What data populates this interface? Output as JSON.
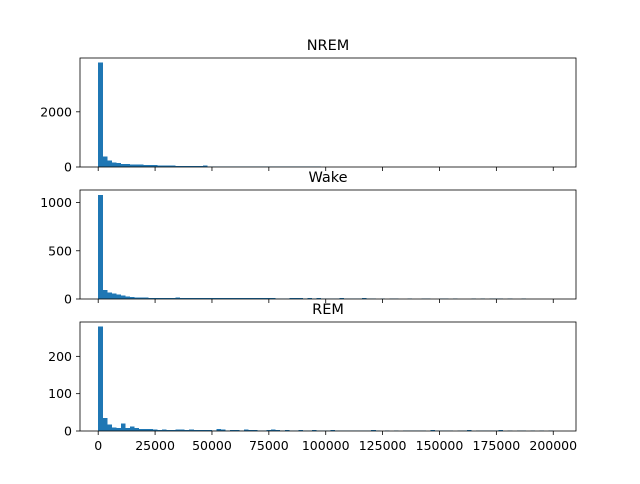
{
  "chart_data": {
    "type": "bar",
    "color": "#1f77b4",
    "bin_width": 2000,
    "xlim": [
      -8000,
      210000
    ],
    "xticks": [
      0,
      25000,
      50000,
      75000,
      100000,
      125000,
      150000,
      175000,
      200000
    ],
    "xtick_labels": [
      "0",
      "25000",
      "50000",
      "75000",
      "100000",
      "125000",
      "150000",
      "175000",
      "200000"
    ],
    "shared_x": true,
    "panels": [
      {
        "title": "NREM",
        "ylim": [
          0,
          3950
        ],
        "yticks": [
          0,
          2000
        ],
        "ytick_labels": [
          "0",
          "2000"
        ],
        "bins": [
          [
            0,
            3780
          ],
          [
            2000,
            380
          ],
          [
            4000,
            230
          ],
          [
            6000,
            170
          ],
          [
            8000,
            140
          ],
          [
            10000,
            110
          ],
          [
            12000,
            100
          ],
          [
            14000,
            95
          ],
          [
            16000,
            90
          ],
          [
            18000,
            85
          ],
          [
            20000,
            70
          ],
          [
            22000,
            70
          ],
          [
            24000,
            65
          ],
          [
            26000,
            60
          ],
          [
            28000,
            60
          ],
          [
            30000,
            55
          ],
          [
            32000,
            50
          ],
          [
            34000,
            45
          ],
          [
            36000,
            40
          ],
          [
            38000,
            35
          ],
          [
            40000,
            30
          ],
          [
            42000,
            30
          ],
          [
            44000,
            28
          ],
          [
            46000,
            60
          ],
          [
            48000,
            25
          ],
          [
            50000,
            25
          ],
          [
            52000,
            25
          ],
          [
            54000,
            20
          ],
          [
            56000,
            20
          ],
          [
            58000,
            18
          ],
          [
            60000,
            18
          ],
          [
            62000,
            18
          ],
          [
            64000,
            15
          ],
          [
            66000,
            15
          ],
          [
            68000,
            15
          ],
          [
            70000,
            14
          ],
          [
            72000,
            12
          ],
          [
            74000,
            12
          ],
          [
            76000,
            12
          ],
          [
            78000,
            12
          ],
          [
            80000,
            10
          ],
          [
            82000,
            10
          ],
          [
            84000,
            10
          ],
          [
            86000,
            10
          ],
          [
            88000,
            10
          ],
          [
            90000,
            10
          ],
          [
            92000,
            10
          ],
          [
            94000,
            10
          ],
          [
            96000,
            10
          ],
          [
            98000,
            8
          ],
          [
            100000,
            8
          ],
          [
            102000,
            8
          ],
          [
            104000,
            8
          ],
          [
            106000,
            8
          ],
          [
            108000,
            8
          ],
          [
            110000,
            8
          ],
          [
            112000,
            8
          ],
          [
            114000,
            8
          ],
          [
            116000,
            8
          ],
          [
            118000,
            8
          ],
          [
            120000,
            8
          ],
          [
            122000,
            6
          ],
          [
            124000,
            6
          ],
          [
            126000,
            6
          ],
          [
            128000,
            6
          ],
          [
            130000,
            6
          ],
          [
            132000,
            6
          ],
          [
            134000,
            6
          ],
          [
            136000,
            6
          ],
          [
            138000,
            6
          ],
          [
            140000,
            6
          ],
          [
            142000,
            6
          ],
          [
            144000,
            6
          ],
          [
            146000,
            6
          ],
          [
            148000,
            6
          ],
          [
            150000,
            6
          ],
          [
            152000,
            6
          ],
          [
            154000,
            6
          ],
          [
            156000,
            6
          ],
          [
            158000,
            6
          ],
          [
            160000,
            6
          ],
          [
            162000,
            6
          ],
          [
            164000,
            6
          ],
          [
            166000,
            6
          ],
          [
            168000,
            6
          ],
          [
            170000,
            6
          ],
          [
            172000,
            6
          ],
          [
            174000,
            6
          ],
          [
            176000,
            6
          ],
          [
            178000,
            6
          ],
          [
            180000,
            6
          ],
          [
            182000,
            6
          ],
          [
            184000,
            6
          ],
          [
            186000,
            6
          ],
          [
            188000,
            6
          ],
          [
            190000,
            6
          ],
          [
            192000,
            6
          ],
          [
            194000,
            6
          ]
        ]
      },
      {
        "title": "Wake",
        "ylim": [
          0,
          1130
        ],
        "yticks": [
          0,
          500,
          1000
        ],
        "ytick_labels": [
          "0",
          "500",
          "1000"
        ],
        "bins": [
          [
            0,
            1080
          ],
          [
            2000,
            95
          ],
          [
            4000,
            70
          ],
          [
            6000,
            55
          ],
          [
            8000,
            45
          ],
          [
            10000,
            35
          ],
          [
            12000,
            25
          ],
          [
            14000,
            20
          ],
          [
            16000,
            18
          ],
          [
            18000,
            18
          ],
          [
            20000,
            15
          ],
          [
            22000,
            12
          ],
          [
            24000,
            10
          ],
          [
            26000,
            10
          ],
          [
            28000,
            10
          ],
          [
            30000,
            8
          ],
          [
            32000,
            10
          ],
          [
            34000,
            15
          ],
          [
            36000,
            12
          ],
          [
            38000,
            10
          ],
          [
            40000,
            8
          ],
          [
            42000,
            10
          ],
          [
            44000,
            8
          ],
          [
            46000,
            8
          ],
          [
            48000,
            10
          ],
          [
            50000,
            8
          ],
          [
            52000,
            10
          ],
          [
            54000,
            8
          ],
          [
            56000,
            8
          ],
          [
            58000,
            10
          ],
          [
            60000,
            12
          ],
          [
            62000,
            10
          ],
          [
            64000,
            8
          ],
          [
            66000,
            10
          ],
          [
            68000,
            8
          ],
          [
            70000,
            10
          ],
          [
            72000,
            8
          ],
          [
            74000,
            8
          ],
          [
            76000,
            8
          ],
          [
            78000,
            6
          ],
          [
            80000,
            6
          ],
          [
            82000,
            6
          ],
          [
            84000,
            8
          ],
          [
            86000,
            10
          ],
          [
            88000,
            8
          ],
          [
            90000,
            6
          ],
          [
            92000,
            8
          ],
          [
            94000,
            6
          ],
          [
            96000,
            8
          ],
          [
            98000,
            6
          ],
          [
            100000,
            6
          ],
          [
            102000,
            6
          ],
          [
            104000,
            6
          ],
          [
            106000,
            8
          ],
          [
            108000,
            6
          ],
          [
            110000,
            6
          ],
          [
            112000,
            6
          ],
          [
            114000,
            6
          ],
          [
            116000,
            8
          ],
          [
            118000,
            6
          ],
          [
            120000,
            6
          ],
          [
            124000,
            6
          ],
          [
            128000,
            6
          ],
          [
            130000,
            6
          ],
          [
            136000,
            6
          ],
          [
            142000,
            6
          ],
          [
            144000,
            6
          ],
          [
            150000,
            6
          ],
          [
            152000,
            6
          ],
          [
            156000,
            6
          ],
          [
            164000,
            6
          ],
          [
            168000,
            6
          ],
          [
            172000,
            6
          ],
          [
            174000,
            6
          ],
          [
            176000,
            6
          ],
          [
            180000,
            6
          ],
          [
            186000,
            6
          ]
        ]
      },
      {
        "title": "REM",
        "ylim": [
          0,
          292
        ],
        "yticks": [
          0,
          100,
          200
        ],
        "ytick_labels": [
          "0",
          "100",
          "200"
        ],
        "bins": [
          [
            0,
            280
          ],
          [
            2000,
            35
          ],
          [
            4000,
            18
          ],
          [
            6000,
            10
          ],
          [
            8000,
            8
          ],
          [
            10000,
            20
          ],
          [
            12000,
            8
          ],
          [
            14000,
            12
          ],
          [
            16000,
            8
          ],
          [
            18000,
            6
          ],
          [
            20000,
            5
          ],
          [
            22000,
            5
          ],
          [
            24000,
            4
          ],
          [
            26000,
            3
          ],
          [
            28000,
            4
          ],
          [
            30000,
            3
          ],
          [
            32000,
            3
          ],
          [
            34000,
            4
          ],
          [
            36000,
            4
          ],
          [
            38000,
            3
          ],
          [
            40000,
            4
          ],
          [
            42000,
            3
          ],
          [
            44000,
            3
          ],
          [
            46000,
            3
          ],
          [
            48000,
            3
          ],
          [
            50000,
            2
          ],
          [
            52000,
            5
          ],
          [
            54000,
            4
          ],
          [
            56000,
            2
          ],
          [
            58000,
            3
          ],
          [
            60000,
            3
          ],
          [
            62000,
            2
          ],
          [
            64000,
            4
          ],
          [
            66000,
            3
          ],
          [
            68000,
            3
          ],
          [
            70000,
            2
          ],
          [
            72000,
            2
          ],
          [
            74000,
            3
          ],
          [
            76000,
            4
          ],
          [
            78000,
            3
          ],
          [
            80000,
            2
          ],
          [
            82000,
            3
          ],
          [
            84000,
            2
          ],
          [
            86000,
            2
          ],
          [
            88000,
            3
          ],
          [
            90000,
            2
          ],
          [
            92000,
            2
          ],
          [
            94000,
            3
          ],
          [
            96000,
            2
          ],
          [
            98000,
            2
          ],
          [
            100000,
            2
          ],
          [
            102000,
            3
          ],
          [
            104000,
            2
          ],
          [
            106000,
            2
          ],
          [
            108000,
            2
          ],
          [
            110000,
            2
          ],
          [
            112000,
            2
          ],
          [
            114000,
            2
          ],
          [
            116000,
            2
          ],
          [
            118000,
            2
          ],
          [
            120000,
            3
          ],
          [
            122000,
            2
          ],
          [
            126000,
            2
          ],
          [
            130000,
            2
          ],
          [
            134000,
            2
          ],
          [
            136000,
            2
          ],
          [
            138000,
            2
          ],
          [
            140000,
            2
          ],
          [
            142000,
            2
          ],
          [
            146000,
            3
          ],
          [
            148000,
            2
          ],
          [
            150000,
            2
          ],
          [
            152000,
            2
          ],
          [
            154000,
            2
          ],
          [
            158000,
            2
          ],
          [
            160000,
            2
          ],
          [
            162000,
            3
          ],
          [
            166000,
            2
          ],
          [
            168000,
            2
          ],
          [
            170000,
            2
          ],
          [
            172000,
            2
          ],
          [
            174000,
            2
          ],
          [
            176000,
            3
          ],
          [
            180000,
            2
          ],
          [
            184000,
            2
          ],
          [
            186000,
            2
          ],
          [
            190000,
            2
          ],
          [
            194000,
            2
          ],
          [
            198000,
            2
          ]
        ]
      }
    ]
  }
}
